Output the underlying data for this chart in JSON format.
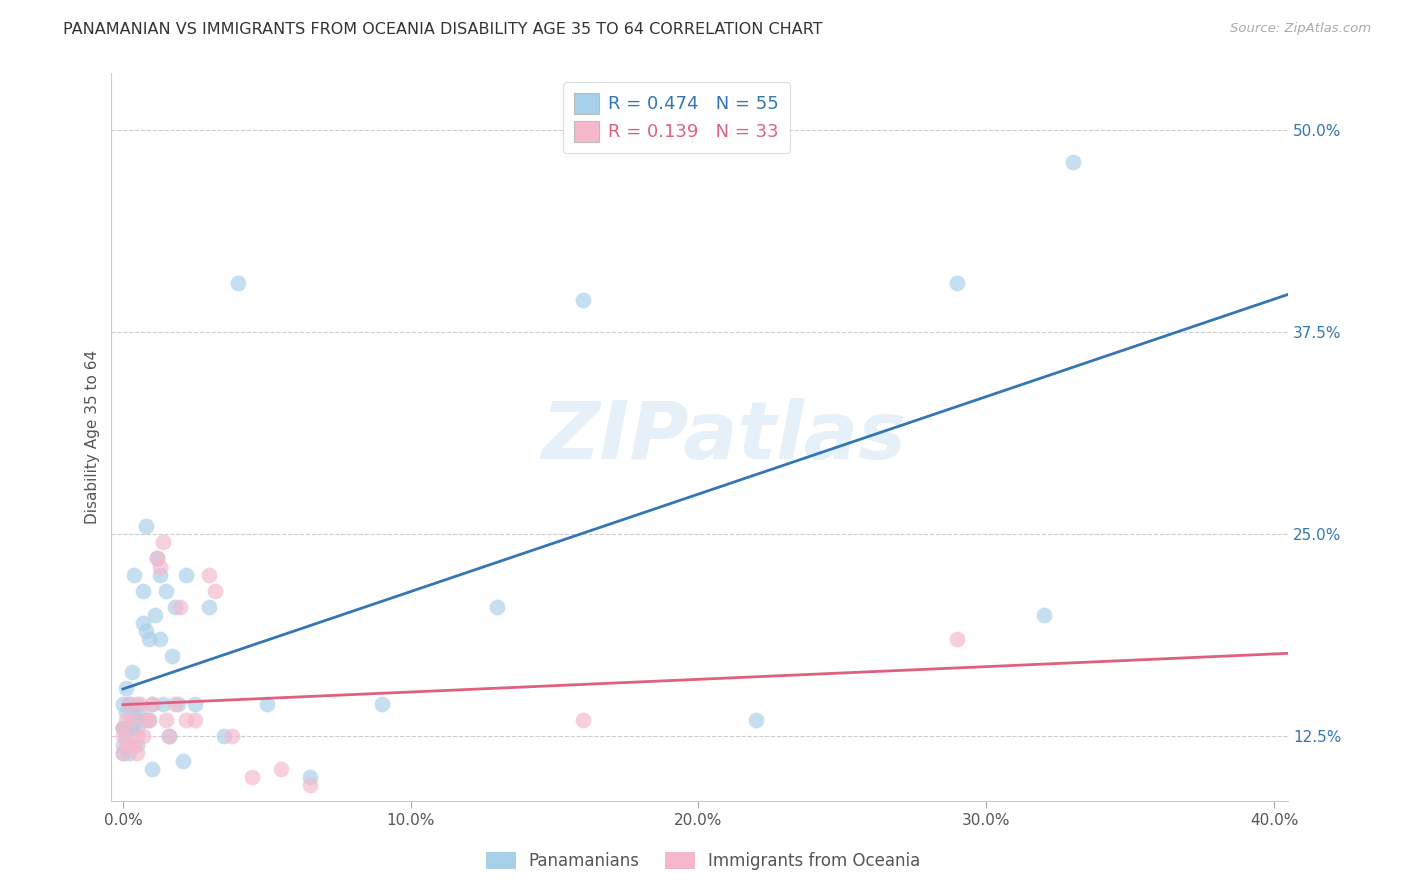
{
  "title": "PANAMANIAN VS IMMIGRANTS FROM OCEANIA DISABILITY AGE 35 TO 64 CORRELATION CHART",
  "source": "Source: ZipAtlas.com",
  "ylabel": "Disability Age 35 to 64",
  "legend_label1": "Panamanians",
  "legend_label2": "Immigrants from Oceania",
  "r1": 0.474,
  "n1": 55,
  "r2": 0.139,
  "n2": 33,
  "color_blue": "#a8cfe8",
  "color_pink": "#f5b8cb",
  "line_color_blue": "#3476b5",
  "line_color_pink": "#e06080",
  "watermark": "ZIPatlas",
  "xlim": [
    -0.004,
    0.405
  ],
  "ylim": [
    0.085,
    0.535
  ],
  "xticks": [
    0.0,
    0.1,
    0.2,
    0.3,
    0.4
  ],
  "xtick_labels": [
    "0.0%",
    "10.0%",
    "20.0%",
    "30.0%",
    "40.0%"
  ],
  "yticks": [
    0.125,
    0.25,
    0.375,
    0.5
  ],
  "ytick_labels": [
    "12.5%",
    "25.0%",
    "37.5%",
    "50.0%"
  ],
  "blue_x": [
    0.0,
    0.0,
    0.0,
    0.0,
    0.0,
    0.001,
    0.001,
    0.001,
    0.001,
    0.002,
    0.002,
    0.002,
    0.003,
    0.003,
    0.003,
    0.004,
    0.004,
    0.005,
    0.005,
    0.005,
    0.006,
    0.006,
    0.007,
    0.007,
    0.008,
    0.008,
    0.009,
    0.009,
    0.01,
    0.01,
    0.011,
    0.012,
    0.013,
    0.013,
    0.014,
    0.015,
    0.016,
    0.017,
    0.018,
    0.019,
    0.021,
    0.022,
    0.025,
    0.03,
    0.035,
    0.04,
    0.05,
    0.065,
    0.09,
    0.13,
    0.16,
    0.22,
    0.29,
    0.32,
    0.33
  ],
  "blue_y": [
    0.13,
    0.145,
    0.13,
    0.12,
    0.115,
    0.155,
    0.14,
    0.13,
    0.125,
    0.145,
    0.13,
    0.115,
    0.165,
    0.14,
    0.13,
    0.225,
    0.135,
    0.145,
    0.13,
    0.12,
    0.135,
    0.14,
    0.195,
    0.215,
    0.255,
    0.19,
    0.135,
    0.185,
    0.145,
    0.105,
    0.2,
    0.235,
    0.225,
    0.185,
    0.145,
    0.215,
    0.125,
    0.175,
    0.205,
    0.145,
    0.11,
    0.225,
    0.145,
    0.205,
    0.125,
    0.405,
    0.145,
    0.1,
    0.145,
    0.205,
    0.395,
    0.135,
    0.405,
    0.2,
    0.48
  ],
  "pink_x": [
    0.0,
    0.0,
    0.0,
    0.001,
    0.001,
    0.002,
    0.002,
    0.003,
    0.004,
    0.005,
    0.005,
    0.006,
    0.007,
    0.008,
    0.009,
    0.01,
    0.012,
    0.013,
    0.014,
    0.015,
    0.016,
    0.018,
    0.02,
    0.022,
    0.025,
    0.03,
    0.032,
    0.038,
    0.045,
    0.055,
    0.065,
    0.16,
    0.29
  ],
  "pink_y": [
    0.125,
    0.13,
    0.115,
    0.135,
    0.12,
    0.145,
    0.12,
    0.135,
    0.12,
    0.125,
    0.115,
    0.145,
    0.125,
    0.135,
    0.135,
    0.145,
    0.235,
    0.23,
    0.245,
    0.135,
    0.125,
    0.145,
    0.205,
    0.135,
    0.135,
    0.225,
    0.215,
    0.125,
    0.1,
    0.105,
    0.095,
    0.135,
    0.185
  ]
}
